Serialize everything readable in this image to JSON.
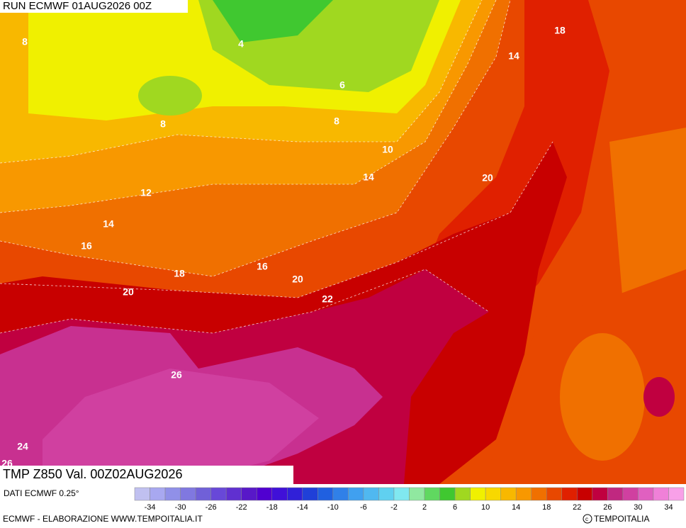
{
  "header": {
    "run": "RUN ECMWF 01AUG2026 00Z",
    "field": "TMP Z850 Val. 00Z02AUG2026",
    "source": "DATI ECMWF 0.25°"
  },
  "map": {
    "contour_labels": [
      8,
      4,
      6,
      8,
      8,
      10,
      14,
      12,
      14,
      16,
      18,
      16,
      20,
      20,
      22,
      26,
      24,
      26,
      18,
      14,
      20
    ]
  },
  "legend": {
    "colors": [
      "#c0c0f0",
      "#a8a8f0",
      "#9090e8",
      "#8078e0",
      "#7060d8",
      "#6848d8",
      "#6030d0",
      "#5818c8",
      "#5000d0",
      "#4010d8",
      "#3020d8",
      "#2040d8",
      "#2060e0",
      "#3080e8",
      "#40a0f0",
      "#50b8f0",
      "#60d0f0",
      "#80e8f0",
      "#90e8a0",
      "#60d860",
      "#40c830",
      "#a0d820",
      "#f0f000",
      "#f8d800",
      "#f8b800",
      "#f89800",
      "#f07000",
      "#e84800",
      "#e02000",
      "#c80000",
      "#c00040",
      "#c02880",
      "#d040a0",
      "#e060c0",
      "#f080d8",
      "#f8a0e8"
    ],
    "ticks": [
      -34,
      -30,
      -26,
      -22,
      -18,
      -14,
      -10,
      -6,
      -2,
      2,
      6,
      10,
      14,
      18,
      22,
      26,
      30,
      34
    ]
  },
  "footer": {
    "credit": "ECMWF - ELABORAZIONE WWW.TEMPOITALIA.IT",
    "brand": "TEMPOITALIA"
  }
}
